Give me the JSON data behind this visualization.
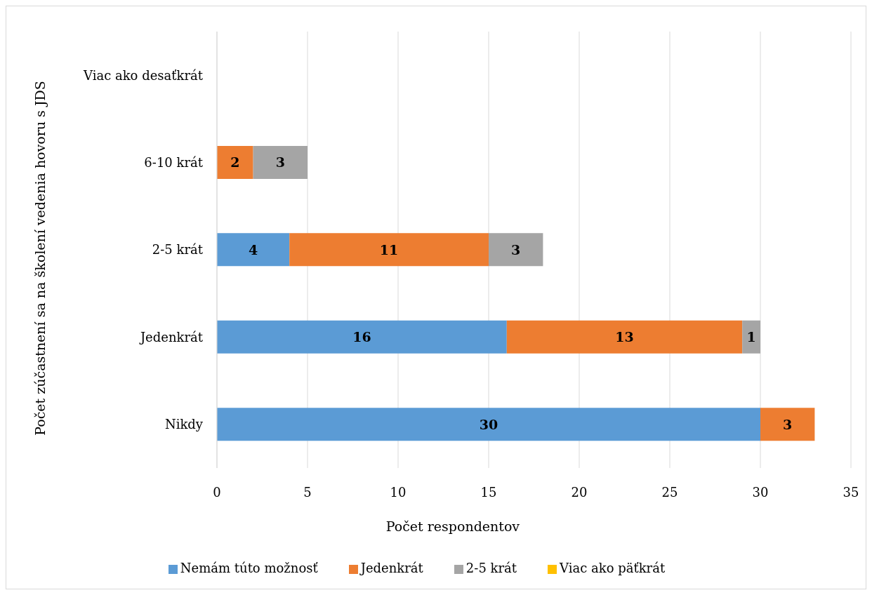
{
  "chart_data": {
    "type": "bar",
    "orientation": "horizontal",
    "stacked": true,
    "categories": [
      "Viac ako desaťkrát",
      "6-10 krát",
      "2-5 krát",
      "Jedenkrát",
      "Nikdy"
    ],
    "series": [
      {
        "name": "Nemám túto možnosť",
        "color": "#5b9bd5",
        "values": [
          null,
          null,
          4,
          16,
          30
        ]
      },
      {
        "name": "Jedenkrát",
        "color": "#ed7d31",
        "values": [
          null,
          2,
          11,
          13,
          3
        ]
      },
      {
        "name": "2-5 krát",
        "color": "#a5a5a5",
        "values": [
          null,
          3,
          3,
          1,
          null
        ]
      },
      {
        "name": "Viac ako päťkrát",
        "color": "#ffc000",
        "values": [
          null,
          null,
          null,
          null,
          null
        ]
      }
    ],
    "xlabel": "Počet respondentov",
    "ylabel": "Počet zúčastnení sa na školení vedenia hovoru s JDS",
    "xlim": [
      0,
      35
    ],
    "xticks": [
      0,
      5,
      10,
      15,
      20,
      25,
      30,
      35
    ],
    "grid": "x",
    "legend": "bottom",
    "data_labels": true
  }
}
